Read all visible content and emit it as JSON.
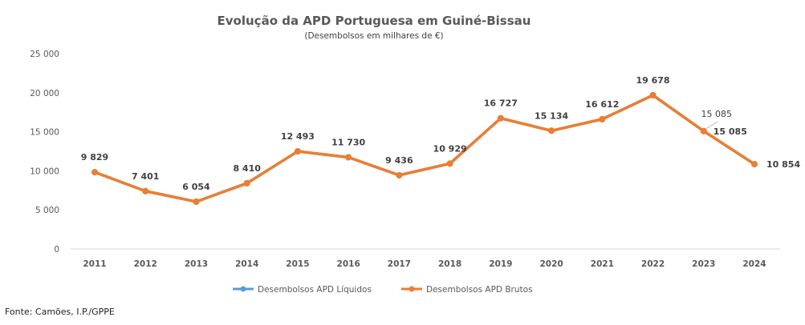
{
  "chart_data": {
    "type": "line",
    "title": "Evolução da APD Portuguesa em Guiné-Bissau",
    "subtitle": "(Desembolsos em milhares de €)",
    "xlabel": "",
    "ylabel": "",
    "categories": [
      "2011",
      "2012",
      "2013",
      "2014",
      "2015",
      "2016",
      "2017",
      "2018",
      "2019",
      "2020",
      "2021",
      "2022",
      "2023",
      "2024"
    ],
    "ylim": [
      0,
      25000
    ],
    "yticks": [
      0,
      5000,
      10000,
      15000,
      20000,
      25000
    ],
    "ytick_labels": [
      "0",
      "5 000",
      "10 000",
      "15 000",
      "20 000",
      "25 000"
    ],
    "grid": false,
    "legend_position": "bottom",
    "series": [
      {
        "name": "Desembolsos APD Líquidos",
        "color": "#5B9BD5",
        "values": [
          9829,
          7401,
          6054,
          8410,
          12493,
          11730,
          9436,
          10929,
          16727,
          15134,
          16612,
          19678,
          15085,
          10854
        ],
        "labels": {
          "12": "15 085"
        }
      },
      {
        "name": "Desembolsos APD Brutos",
        "color": "#ED7D31",
        "values": [
          9829,
          7401,
          6054,
          8410,
          12493,
          11730,
          9436,
          10929,
          16727,
          15134,
          16612,
          19678,
          15085,
          10854
        ],
        "value_labels": [
          "9 829",
          "7 401",
          "6 054",
          "8 410",
          "12 493",
          "11 730",
          "9 436",
          "10 929",
          "16 727",
          "15 134",
          "16 612",
          "19 678",
          "15 085",
          "10 854"
        ]
      }
    ]
  },
  "source": "Fonte: Camões, I.P./GPPE"
}
